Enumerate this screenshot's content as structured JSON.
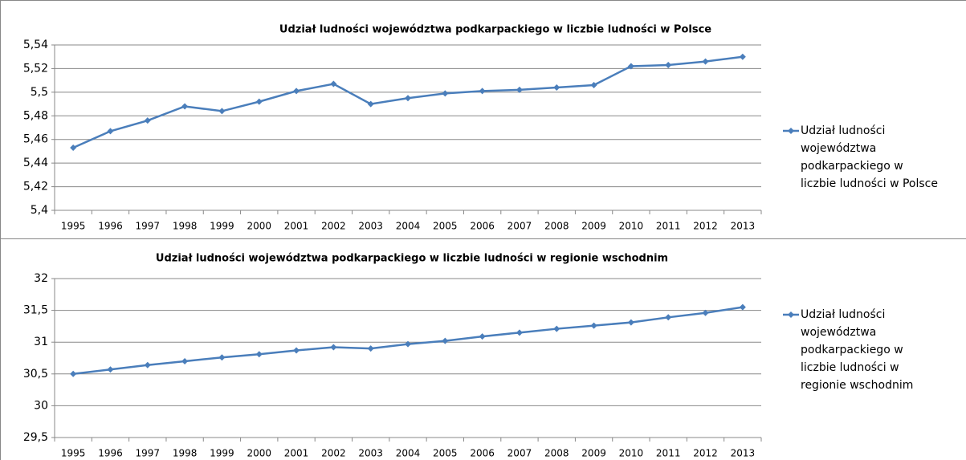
{
  "chart_data": [
    {
      "type": "line",
      "title": "Udział ludności województwa podkarpackiego w liczbie ludności w Polsce",
      "categories": [
        "1995",
        "1996",
        "1997",
        "1998",
        "1999",
        "2000",
        "2001",
        "2002",
        "2003",
        "2004",
        "2005",
        "2006",
        "2007",
        "2008",
        "2009",
        "2010",
        "2011",
        "2012",
        "2013"
      ],
      "series": [
        {
          "name": "Udział ludności województwa podkarpackiego w liczbie ludności w Polsce",
          "color": "#4a7ebb",
          "values": [
            5.453,
            5.467,
            5.476,
            5.488,
            5.484,
            5.492,
            5.501,
            5.507,
            5.49,
            5.495,
            5.499,
            5.501,
            5.502,
            5.504,
            5.506,
            5.522,
            5.523,
            5.526,
            5.53
          ]
        }
      ],
      "ylim": [
        5.4,
        5.54
      ],
      "yticks": [
        {
          "value": 5.4,
          "label": "5,4"
        },
        {
          "value": 5.42,
          "label": "5,42"
        },
        {
          "value": 5.44,
          "label": "5,44"
        },
        {
          "value": 5.46,
          "label": "5,46"
        },
        {
          "value": 5.48,
          "label": "5,48"
        },
        {
          "value": 5.5,
          "label": "5,5"
        },
        {
          "value": 5.52,
          "label": "5,52"
        },
        {
          "value": 5.54,
          "label": "5,54"
        }
      ],
      "grid": true,
      "legend": "right"
    },
    {
      "type": "line",
      "title": "Udział ludności województwa podkarpackiego w liczbie ludności w regionie wschodnim",
      "categories": [
        "1995",
        "1996",
        "1997",
        "1998",
        "1999",
        "2000",
        "2001",
        "2002",
        "2003",
        "2004",
        "2005",
        "2006",
        "2007",
        "2008",
        "2009",
        "2010",
        "2011",
        "2012",
        "2013"
      ],
      "series": [
        {
          "name": "Udział ludności województwa podkarpackiego w liczbie ludności w regionie wschodnim",
          "color": "#4a7ebb",
          "values": [
            30.5,
            30.57,
            30.64,
            30.7,
            30.76,
            30.81,
            30.87,
            30.92,
            30.9,
            30.97,
            31.02,
            31.09,
            31.15,
            31.21,
            31.26,
            31.31,
            31.39,
            31.46,
            31.55
          ]
        }
      ],
      "ylim": [
        29.5,
        32
      ],
      "yticks": [
        {
          "value": 29.5,
          "label": "29,5"
        },
        30,
        {
          "value": 30.5,
          "label": "30,5"
        },
        31,
        {
          "value": 31.5,
          "label": "31,5"
        },
        32
      ],
      "grid": true,
      "legend": "right"
    }
  ]
}
